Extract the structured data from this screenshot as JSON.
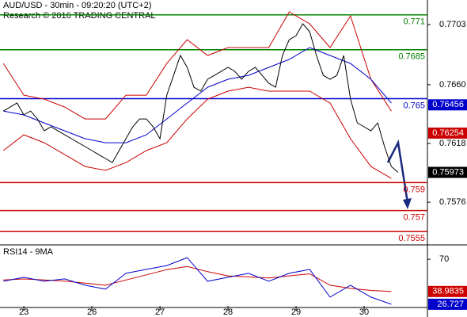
{
  "chart_data": [
    {
      "type": "line",
      "title": "AUD/USD - 30min - 09:20:20 (UTC+2)",
      "subtitle": "Research © 2016 TRADING CENTRAL",
      "xlim": [
        -0.35,
        5.93
      ],
      "xticks": [
        {
          "value": 0,
          "label": "23"
        },
        {
          "value": 1,
          "label": "26"
        },
        {
          "value": 2,
          "label": "27"
        },
        {
          "value": 3,
          "label": "28"
        },
        {
          "value": 4,
          "label": "29"
        },
        {
          "value": 5,
          "label": "30"
        }
      ],
      "ylim": [
        0.7546,
        0.77206
      ],
      "yticks": [
        0.7703,
        {
          "value": 0.766,
          "label": "0.7660"
        },
        0.7618,
        0.7576
      ],
      "series": [
        {
          "color": "#cc0000",
          "x": [
            -0.3,
            0,
            0.3,
            0.6,
            0.9,
            1.2,
            1.5,
            1.8,
            2.1,
            2.4,
            2.7,
            3,
            3.3,
            3.6,
            3.9,
            4.2,
            4.5,
            4.8,
            5.1,
            5.4
          ],
          "values": [
            0.76752,
            0.76525,
            0.76497,
            0.7644,
            0.76355,
            0.76355,
            0.76525,
            0.76525,
            0.76752,
            0.76922,
            0.76809,
            0.76866,
            0.76866,
            0.76866,
            0.77121,
            0.77036,
            0.76866,
            0.77092,
            0.76639,
            0.76412
          ]
        },
        {
          "color": "#cc0000",
          "x": [
            -0.3,
            0,
            0.3,
            0.6,
            0.9,
            1.2,
            1.5,
            1.8,
            2.1,
            2.4,
            2.7,
            3,
            3.3,
            3.6,
            3.9,
            4.2,
            4.5,
            4.8,
            5.1,
            5.4
          ],
          "values": [
            0.76129,
            0.76242,
            0.76185,
            0.761,
            0.76015,
            0.75987,
            0.76043,
            0.76129,
            0.76185,
            0.76355,
            0.76497,
            0.76554,
            0.76582,
            0.76554,
            0.76554,
            0.76554,
            0.76469,
            0.76214,
            0.76015,
            0.7593
          ]
        },
        {
          "color": "#0000cc",
          "x": [
            -0.3,
            0,
            0.3,
            0.6,
            0.9,
            1.2,
            1.5,
            1.8,
            2.1,
            2.4,
            2.7,
            3,
            3.3,
            3.6,
            3.9,
            4.2,
            4.5,
            4.8,
            5.1,
            5.4
          ],
          "values": [
            0.76412,
            0.76384,
            0.76327,
            0.7627,
            0.76214,
            0.76185,
            0.76185,
            0.76242,
            0.76355,
            0.76469,
            0.76582,
            0.76639,
            0.76667,
            0.76724,
            0.76781,
            0.76866,
            0.76809,
            0.76752,
            0.76639,
            0.76469
          ]
        },
        {
          "color": "#000000",
          "x": [
            -0.3,
            -0.2,
            -0.1,
            0,
            0.1,
            0.2,
            0.3,
            0.4,
            0.5,
            0.6,
            0.7,
            0.8,
            0.9,
            1,
            1.1,
            1.2,
            1.3,
            1.4,
            1.5,
            1.6,
            1.7,
            1.8,
            1.9,
            2,
            2.1,
            2.2,
            2.3,
            2.4,
            2.5,
            2.6,
            2.7,
            2.8,
            2.9,
            3,
            3.1,
            3.2,
            3.3,
            3.4,
            3.5,
            3.6,
            3.7,
            3.8,
            3.9,
            4,
            4.1,
            4.2,
            4.3,
            4.4,
            4.5,
            4.6,
            4.7,
            4.8,
            4.9,
            5,
            5.1,
            5.2,
            5.3,
            5.4,
            5.5
          ],
          "values": [
            0.76412,
            0.7644,
            0.76469,
            0.76384,
            0.76412,
            0.76355,
            0.7627,
            0.76299,
            0.7627,
            0.76242,
            0.76214,
            0.76185,
            0.76157,
            0.76129,
            0.761,
            0.76072,
            0.76043,
            0.76129,
            0.76214,
            0.76299,
            0.76355,
            0.76355,
            0.76299,
            0.76214,
            0.76525,
            0.76667,
            0.76809,
            0.76724,
            0.76582,
            0.76554,
            0.76639,
            0.76667,
            0.76695,
            0.76724,
            0.76695,
            0.76639,
            0.76695,
            0.76724,
            0.76667,
            0.7661,
            0.76582,
            0.76809,
            0.76922,
            0.76951,
            0.77036,
            0.76979,
            0.76809,
            0.76667,
            0.76639,
            0.76667,
            0.76809,
            0.76497,
            0.76327,
            0.76299,
            0.7627,
            0.76327,
            0.76157,
            0.76015,
            0.75973
          ]
        }
      ],
      "levels": [
        {
          "value": 0.771,
          "color": "#008000"
        },
        {
          "value": 0.7685,
          "color": "#008000"
        },
        {
          "value": 0.765,
          "color": "#0000cc"
        },
        {
          "value": 0.759,
          "color": "#cc0000"
        },
        {
          "value": 0.757,
          "color": "#cc0000"
        },
        {
          "value": 0.7555,
          "color": "#cc0000"
        }
      ],
      "price_tags": [
        {
          "value": 0.76456,
          "color": "#0000cc"
        },
        {
          "value": 0.76254,
          "color": "#cc0000"
        },
        {
          "value": 0.75973,
          "color": "#000000"
        }
      ]
    },
    {
      "type": "line",
      "title": "RSI14 - 9MA",
      "xlim": [
        -0.35,
        5.93
      ],
      "ylim": [
        16,
        83
      ],
      "yticks": [
        70
      ],
      "series": [
        {
          "color": "#cc0000",
          "x": [
            -0.3,
            0,
            0.3,
            0.6,
            0.9,
            1.2,
            1.5,
            1.8,
            2.1,
            2.4,
            2.7,
            3,
            3.3,
            3.6,
            3.9,
            4.2,
            4.5,
            4.8,
            5.1,
            5.4
          ],
          "values": [
            50,
            51,
            50,
            49,
            47,
            45,
            50,
            55,
            60,
            63,
            58,
            54,
            53,
            52,
            54,
            56,
            45,
            42,
            40,
            39
          ]
        },
        {
          "color": "#0000cc",
          "x": [
            -0.3,
            0,
            0.3,
            0.6,
            0.9,
            1.2,
            1.5,
            1.8,
            2.1,
            2.4,
            2.7,
            3,
            3.3,
            3.6,
            3.9,
            4.2,
            4.5,
            4.8,
            5.1,
            5.4
          ],
          "values": [
            48.8,
            52.6,
            48.8,
            51.1,
            45,
            41.2,
            56.4,
            60.2,
            63.9,
            71.5,
            48.8,
            52.6,
            56.4,
            48.8,
            56.4,
            60.2,
            33.6,
            45,
            33.6,
            26.7
          ]
        }
      ],
      "price_tags": [
        {
          "value": 38.9835,
          "color": "#cc0000"
        },
        {
          "value": 26.727,
          "color": "#0000cc"
        }
      ]
    }
  ]
}
